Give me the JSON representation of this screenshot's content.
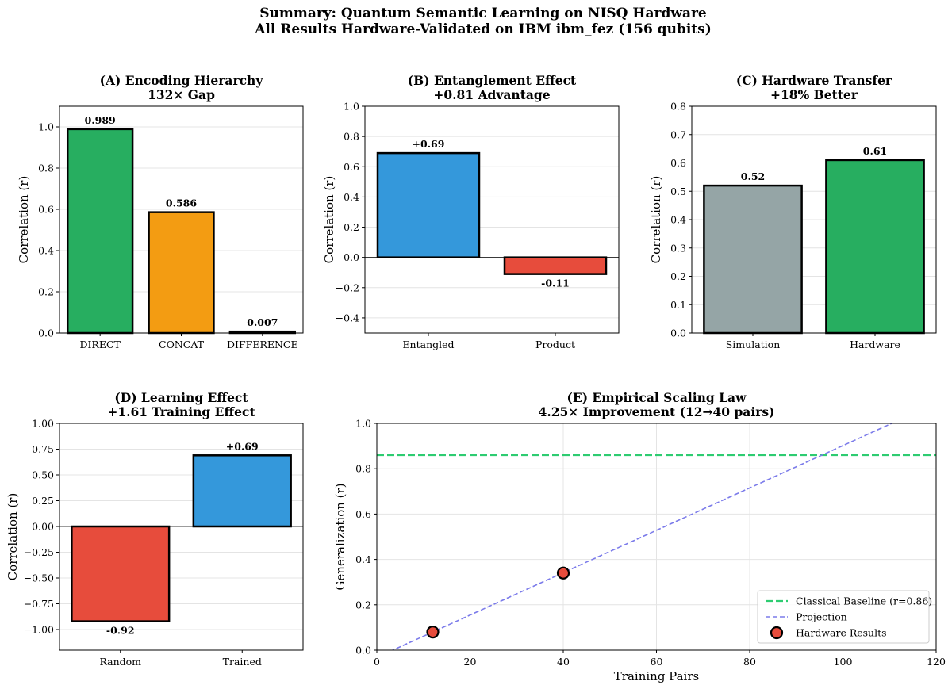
{
  "figure": {
    "title_line1": "Summary: Quantum Semantic Learning on NISQ Hardware",
    "title_line2": "All Results Hardware-Validated on IBM ibm_fez (156 qubits)"
  },
  "colors": {
    "green": "#27ae60",
    "orange": "#f39c12",
    "blue": "#3498db",
    "red": "#e74c3c",
    "gray": "#95a5a6",
    "baseline": "#2ecc71",
    "projection": "#7b7bea"
  },
  "chart_data": [
    {
      "id": "A",
      "type": "bar",
      "title_line1": "(A) Encoding Hierarchy",
      "title_line2": "132× Gap",
      "ylabel": "Correlation (r)",
      "categories": [
        "DIRECT",
        "CONCAT",
        "DIFFERENCE"
      ],
      "values": [
        0.989,
        0.586,
        0.007
      ],
      "value_labels": [
        "0.989",
        "0.586",
        "0.007"
      ],
      "colors": [
        "#27ae60",
        "#f39c12",
        "#1e8449"
      ],
      "ylim": [
        0,
        1.1
      ],
      "yticks": [
        0.0,
        0.2,
        0.4,
        0.6,
        0.8,
        1.0
      ],
      "ytick_labels": [
        "0.0",
        "0.2",
        "0.4",
        "0.6",
        "0.8",
        "1.0"
      ],
      "grid": "y"
    },
    {
      "id": "B",
      "type": "bar",
      "title_line1": "(B) Entanglement Effect",
      "title_line2": "+0.81 Advantage",
      "ylabel": "Correlation (r)",
      "categories": [
        "Entangled",
        "Product"
      ],
      "values": [
        0.69,
        -0.11
      ],
      "value_labels": [
        "+0.69",
        "-0.11"
      ],
      "colors": [
        "#3498db",
        "#e74c3c"
      ],
      "ylim": [
        -0.5,
        1.0
      ],
      "yticks": [
        -0.4,
        -0.2,
        0.0,
        0.2,
        0.4,
        0.6,
        0.8,
        1.0
      ],
      "ytick_labels": [
        "−0.4",
        "−0.2",
        "0.0",
        "0.2",
        "0.4",
        "0.6",
        "0.8",
        "1.0"
      ],
      "grid": "y",
      "zero_line": true
    },
    {
      "id": "C",
      "type": "bar",
      "title_line1": "(C) Hardware Transfer",
      "title_line2": "+18% Better",
      "ylabel": "Correlation (r)",
      "categories": [
        "Simulation",
        "Hardware"
      ],
      "values": [
        0.52,
        0.61
      ],
      "value_labels": [
        "0.52",
        "0.61"
      ],
      "colors": [
        "#95a5a6",
        "#27ae60"
      ],
      "ylim": [
        0,
        0.8
      ],
      "yticks": [
        0.0,
        0.1,
        0.2,
        0.3,
        0.4,
        0.5,
        0.6,
        0.7,
        0.8
      ],
      "ytick_labels": [
        "0.0",
        "0.1",
        "0.2",
        "0.3",
        "0.4",
        "0.5",
        "0.6",
        "0.7",
        "0.8"
      ],
      "grid": "y"
    },
    {
      "id": "D",
      "type": "bar",
      "title_line1": "(D) Learning Effect",
      "title_line2": "+1.61 Training Effect",
      "ylabel": "Correlation (r)",
      "categories": [
        "Random",
        "Trained"
      ],
      "values": [
        -0.92,
        0.69
      ],
      "value_labels": [
        "-0.92",
        "+0.69"
      ],
      "colors": [
        "#e74c3c",
        "#3498db"
      ],
      "ylim": [
        -1.2,
        1.0
      ],
      "yticks": [
        -1.0,
        -0.75,
        -0.5,
        -0.25,
        0.0,
        0.25,
        0.5,
        0.75,
        1.0
      ],
      "ytick_labels": [
        "−1.00",
        "−0.75",
        "−0.50",
        "−0.25",
        "0.00",
        "0.25",
        "0.50",
        "0.75",
        "1.00"
      ],
      "grid": "y",
      "zero_line": true
    },
    {
      "id": "E",
      "type": "scatter",
      "title_line1": "(E) Empirical Scaling Law",
      "title_line2": "4.25× Improvement (12→40 pairs)",
      "xlabel": "Training Pairs",
      "ylabel": "Generalization (r)",
      "xlim": [
        0,
        120
      ],
      "ylim": [
        0,
        1.0
      ],
      "xticks": [
        0,
        20,
        40,
        60,
        80,
        100,
        120
      ],
      "xtick_labels": [
        "0",
        "20",
        "40",
        "60",
        "80",
        "100",
        "120"
      ],
      "yticks": [
        0.0,
        0.2,
        0.4,
        0.6,
        0.8,
        1.0
      ],
      "ytick_labels": [
        "0.0",
        "0.2",
        "0.4",
        "0.6",
        "0.8",
        "1.0"
      ],
      "grid": "both",
      "baseline": {
        "name": "Classical Baseline (r=0.86)",
        "y": 0.86,
        "color": "#2ecc71"
      },
      "projection": {
        "name": "Projection",
        "x": [
          0,
          120
        ],
        "y": [
          -0.032,
          1.089
        ],
        "color": "#7b7bea"
      },
      "points": {
        "name": "Hardware Results",
        "x": [
          12,
          40
        ],
        "y": [
          0.08,
          0.34
        ],
        "color": "#e74c3c"
      },
      "legend_position": "lower-right"
    }
  ]
}
